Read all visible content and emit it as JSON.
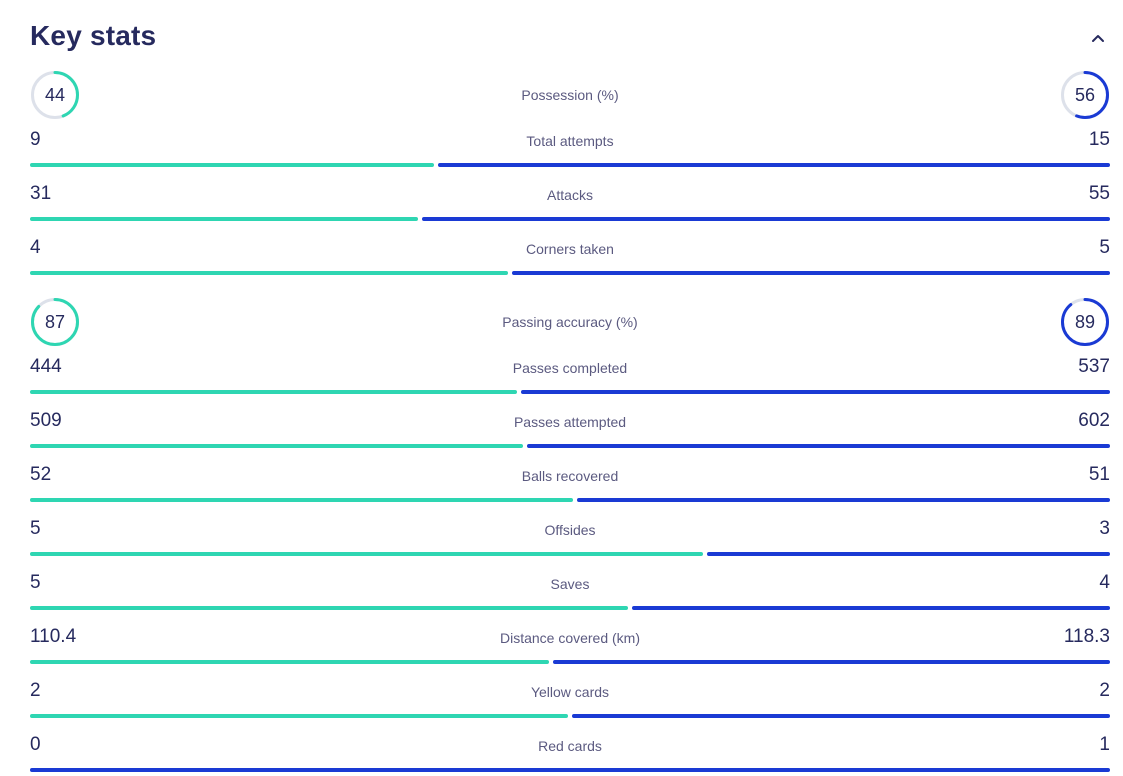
{
  "title": "Key stats",
  "colors": {
    "home": "#2ed6b2",
    "away": "#1a3ad4",
    "track": "#dde1ea"
  },
  "stats": [
    {
      "label": "Possession (%)",
      "home": "44",
      "away": "56",
      "kind": "ring"
    },
    {
      "label": "Total attempts",
      "home": "9",
      "away": "15",
      "kind": "bar"
    },
    {
      "label": "Attacks",
      "home": "31",
      "away": "55",
      "kind": "bar"
    },
    {
      "label": "Corners taken",
      "home": "4",
      "away": "5",
      "kind": "bar"
    },
    {
      "label": "Passing accuracy (%)",
      "home": "87",
      "away": "89",
      "kind": "ring"
    },
    {
      "label": "Passes completed",
      "home": "444",
      "away": "537",
      "kind": "bar"
    },
    {
      "label": "Passes attempted",
      "home": "509",
      "away": "602",
      "kind": "bar"
    },
    {
      "label": "Balls recovered",
      "home": "52",
      "away": "51",
      "kind": "bar"
    },
    {
      "label": "Offsides",
      "home": "5",
      "away": "3",
      "kind": "bar"
    },
    {
      "label": "Saves",
      "home": "5",
      "away": "4",
      "kind": "bar"
    },
    {
      "label": "Distance covered (km)",
      "home": "110.4",
      "away": "118.3",
      "kind": "bar"
    },
    {
      "label": "Yellow cards",
      "home": "2",
      "away": "2",
      "kind": "bar"
    },
    {
      "label": "Red cards",
      "home": "0",
      "away": "1",
      "kind": "bar"
    }
  ]
}
